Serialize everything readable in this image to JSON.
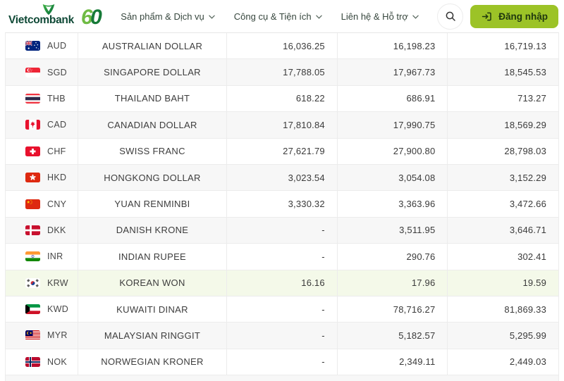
{
  "colors": {
    "brand_green": "#0f4936",
    "anniversary_light_green": "#6fbb44",
    "anniversary_dark_green": "#167a38",
    "button_green": "#9cc327",
    "highlight_row_green": "#f4f9e9",
    "row_alt_gray": "#f7f7f7",
    "table_border": "#ececec"
  },
  "header": {
    "brand": "Vietcombank",
    "anniversary_six": "6",
    "anniversary_zero": "0",
    "nav": [
      {
        "label": "Sản phẩm & Dịch vụ"
      },
      {
        "label": "Công cụ & Tiện ích"
      },
      {
        "label": "Liên hệ & Hỗ trợ"
      }
    ],
    "login_label": "Đăng nhập"
  },
  "table": {
    "rows": [
      {
        "flag": "au",
        "code": "AUD",
        "name": "AUSTRALIAN DOLLAR",
        "buy_cash": "16,036.25",
        "buy_transfer": "16,198.23",
        "sell": "16,719.13",
        "highlighted": false
      },
      {
        "flag": "sg",
        "code": "SGD",
        "name": "SINGAPORE DOLLAR",
        "buy_cash": "17,788.05",
        "buy_transfer": "17,967.73",
        "sell": "18,545.53",
        "highlighted": false
      },
      {
        "flag": "th",
        "code": "THB",
        "name": "THAILAND BAHT",
        "buy_cash": "618.22",
        "buy_transfer": "686.91",
        "sell": "713.27",
        "highlighted": false
      },
      {
        "flag": "ca",
        "code": "CAD",
        "name": "CANADIAN DOLLAR",
        "buy_cash": "17,810.84",
        "buy_transfer": "17,990.75",
        "sell": "18,569.29",
        "highlighted": false
      },
      {
        "flag": "ch",
        "code": "CHF",
        "name": "SWISS FRANC",
        "buy_cash": "27,621.79",
        "buy_transfer": "27,900.80",
        "sell": "28,798.03",
        "highlighted": false
      },
      {
        "flag": "hk",
        "code": "HKD",
        "name": "HONGKONG DOLLAR",
        "buy_cash": "3,023.54",
        "buy_transfer": "3,054.08",
        "sell": "3,152.29",
        "highlighted": false
      },
      {
        "flag": "cn",
        "code": "CNY",
        "name": "YUAN RENMINBI",
        "buy_cash": "3,330.32",
        "buy_transfer": "3,363.96",
        "sell": "3,472.66",
        "highlighted": false
      },
      {
        "flag": "dk",
        "code": "DKK",
        "name": "DANISH KRONE",
        "buy_cash": "-",
        "buy_transfer": "3,511.95",
        "sell": "3,646.71",
        "highlighted": false
      },
      {
        "flag": "in",
        "code": "INR",
        "name": "INDIAN RUPEE",
        "buy_cash": "-",
        "buy_transfer": "290.76",
        "sell": "302.41",
        "highlighted": false
      },
      {
        "flag": "kr",
        "code": "KRW",
        "name": "KOREAN WON",
        "buy_cash": "16.16",
        "buy_transfer": "17.96",
        "sell": "19.59",
        "highlighted": true
      },
      {
        "flag": "kw",
        "code": "KWD",
        "name": "KUWAITI DINAR",
        "buy_cash": "-",
        "buy_transfer": "78,716.27",
        "sell": "81,869.33",
        "highlighted": false
      },
      {
        "flag": "my",
        "code": "MYR",
        "name": "MALAYSIAN RINGGIT",
        "buy_cash": "-",
        "buy_transfer": "5,182.57",
        "sell": "5,295.99",
        "highlighted": false
      },
      {
        "flag": "no",
        "code": "NOK",
        "name": "NORWEGIAN KRONER",
        "buy_cash": "-",
        "buy_transfer": "2,349.11",
        "sell": "2,449.03",
        "highlighted": false
      }
    ]
  }
}
